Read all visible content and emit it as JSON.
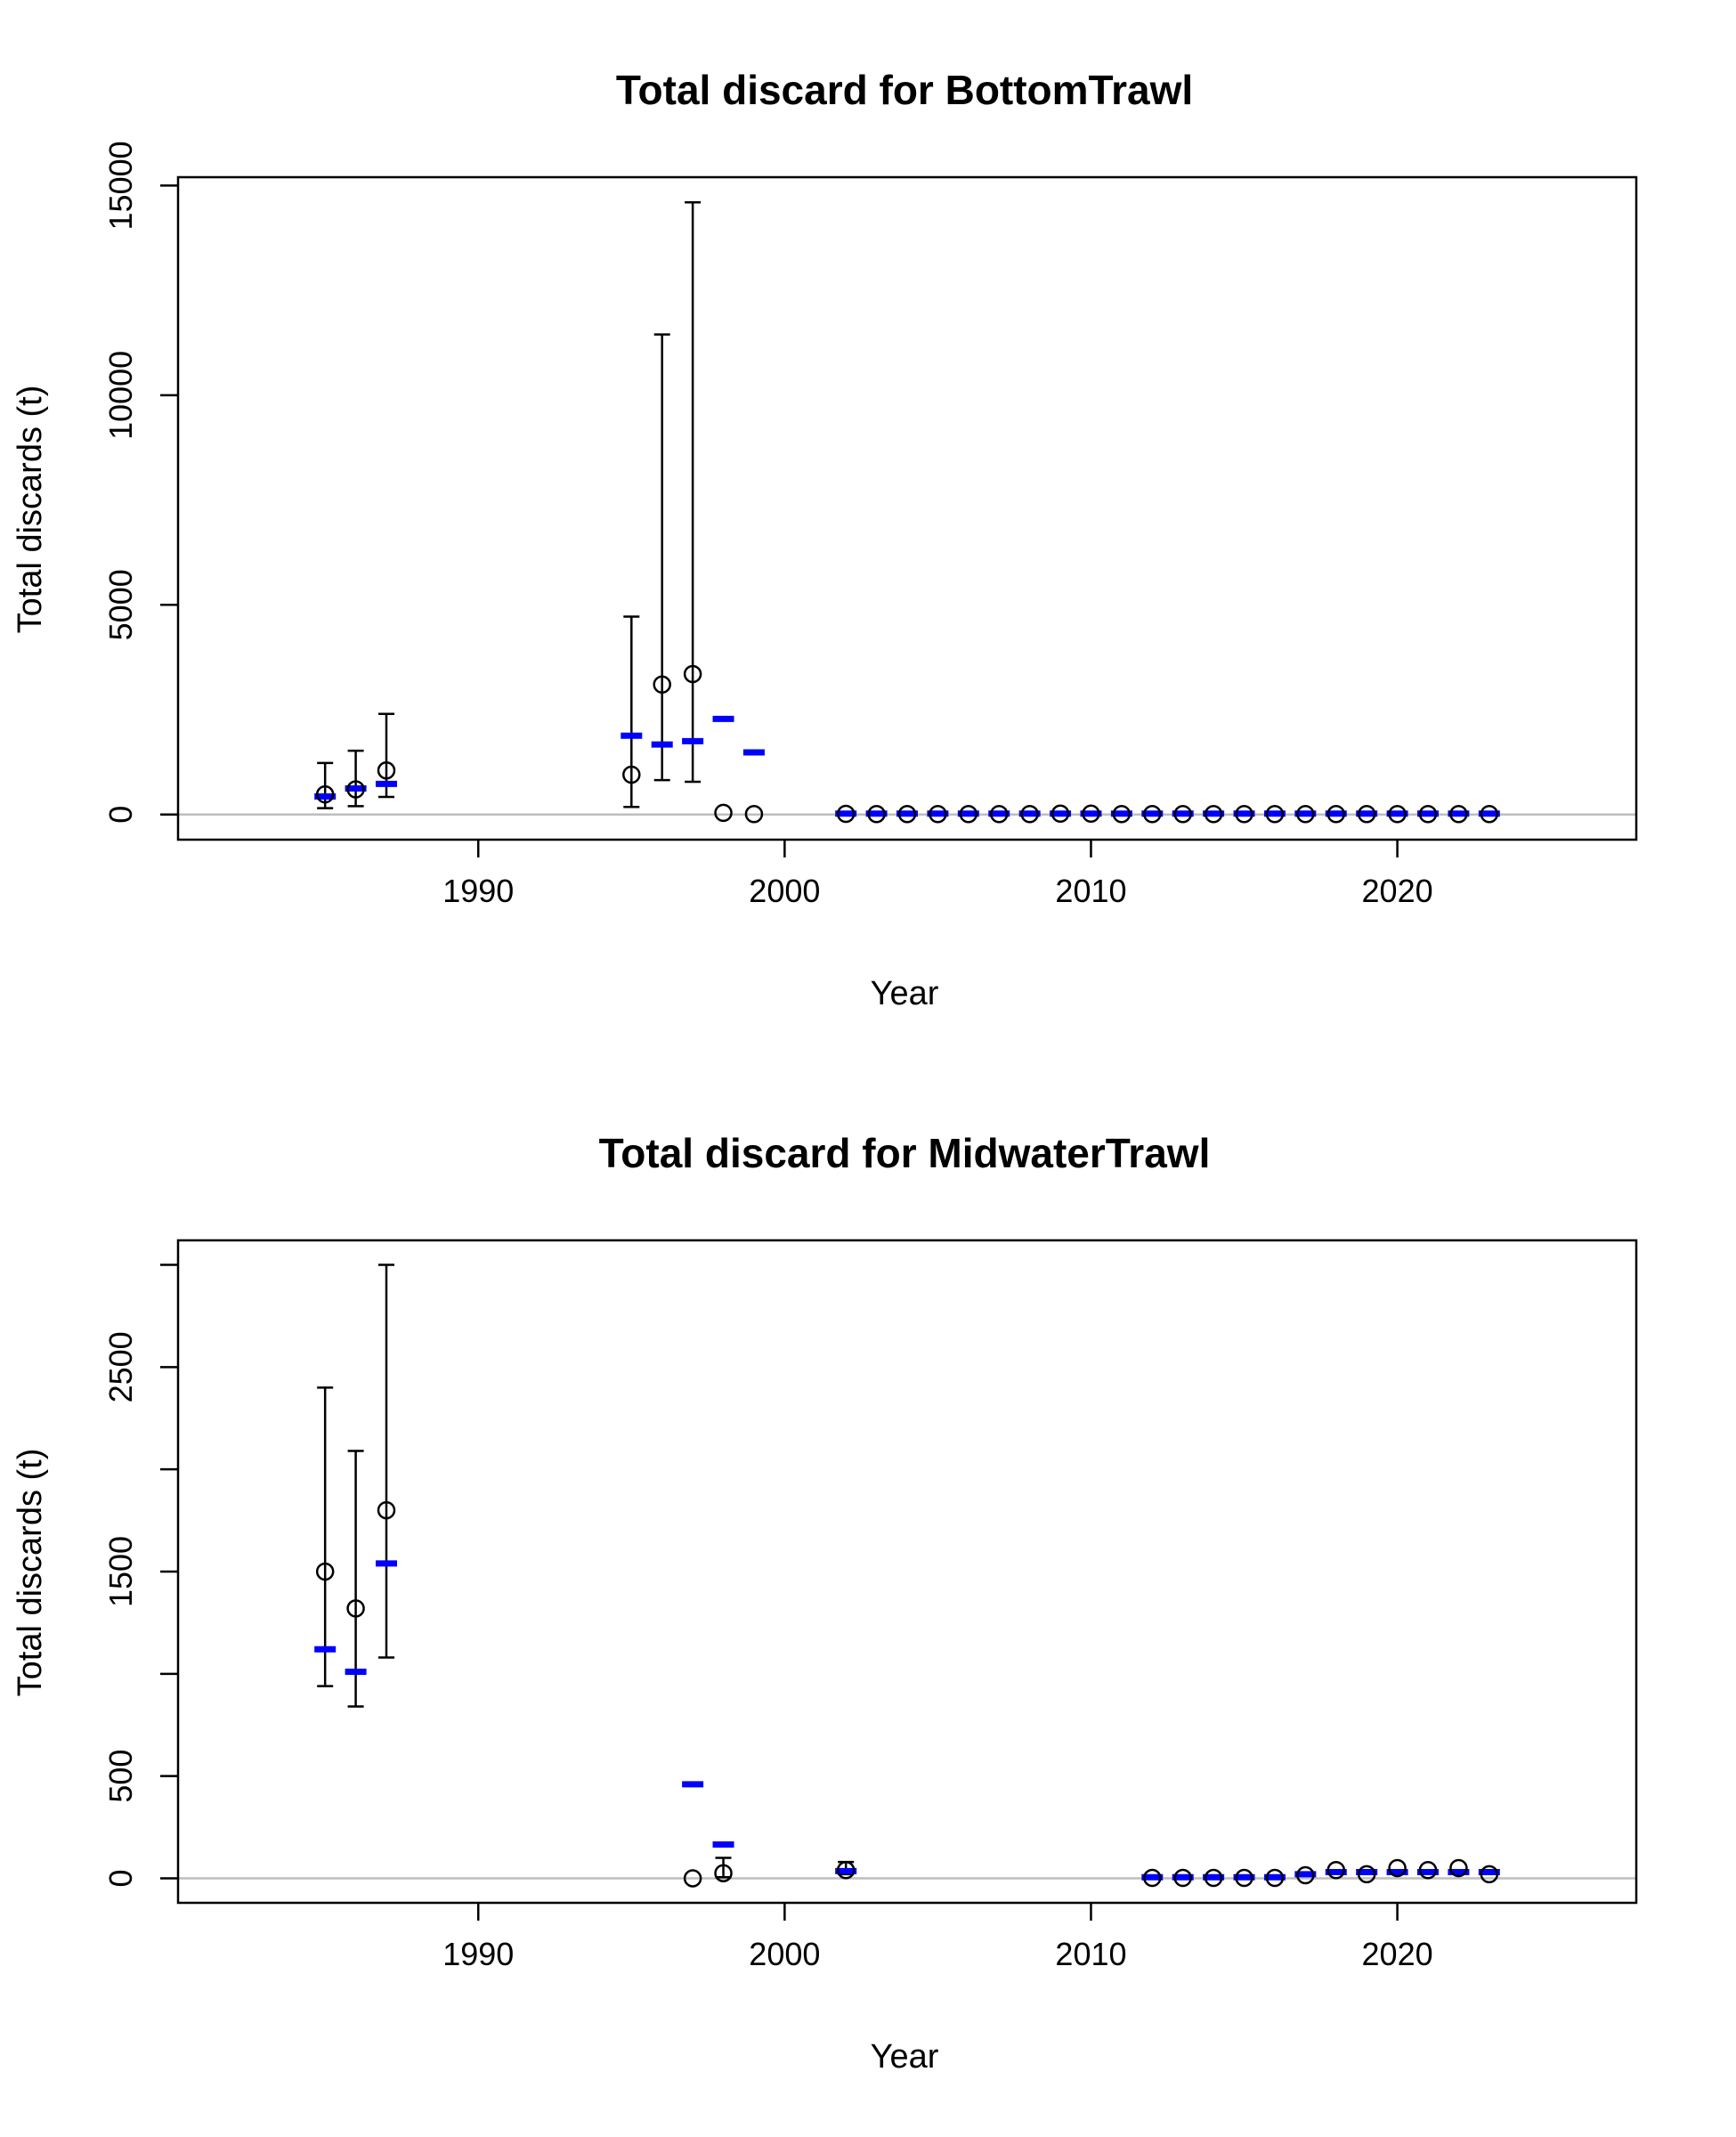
{
  "chart_data": [
    {
      "type": "scatter",
      "title": "Total discard for BottomTrawl",
      "xlabel": "Year",
      "ylabel": "Total discards (t)",
      "xlim": [
        1980.2,
        2027.8
      ],
      "ylim": [
        -600,
        15200
      ],
      "x_ticks": [
        1990,
        2000,
        2010,
        2020
      ],
      "y_ticks": [
        0,
        5000,
        10000,
        15000
      ],
      "grid": false,
      "reference_line": 0,
      "series": [
        {
          "marker": "open-circle",
          "color": "#000000",
          "points": [
            {
              "x": 1985,
              "y": 480,
              "lo": 150,
              "hi": 1230
            },
            {
              "x": 1986,
              "y": 600,
              "lo": 200,
              "hi": 1520
            },
            {
              "x": 1987,
              "y": 1050,
              "lo": 420,
              "hi": 2400
            },
            {
              "x": 1995,
              "y": 950,
              "lo": 180,
              "hi": 4720
            },
            {
              "x": 1996,
              "y": 3100,
              "lo": 820,
              "hi": 11450
            },
            {
              "x": 1997,
              "y": 3350,
              "lo": 780,
              "hi": 14600
            },
            {
              "x": 1998,
              "y": 40
            },
            {
              "x": 1999,
              "y": 10
            },
            {
              "x": 2002,
              "y": 15
            },
            {
              "x": 2003,
              "y": 10
            },
            {
              "x": 2004,
              "y": 10
            },
            {
              "x": 2005,
              "y": 10
            },
            {
              "x": 2006,
              "y": 10
            },
            {
              "x": 2007,
              "y": 10
            },
            {
              "x": 2008,
              "y": 10
            },
            {
              "x": 2009,
              "y": 20
            },
            {
              "x": 2010,
              "y": 20
            },
            {
              "x": 2011,
              "y": 10
            },
            {
              "x": 2012,
              "y": 10
            },
            {
              "x": 2013,
              "y": 10
            },
            {
              "x": 2014,
              "y": 10
            },
            {
              "x": 2015,
              "y": 10
            },
            {
              "x": 2016,
              "y": 10
            },
            {
              "x": 2017,
              "y": 10
            },
            {
              "x": 2018,
              "y": 10
            },
            {
              "x": 2019,
              "y": 10
            },
            {
              "x": 2020,
              "y": 10
            },
            {
              "x": 2021,
              "y": 10
            },
            {
              "x": 2022,
              "y": 10
            },
            {
              "x": 2023,
              "y": 10
            }
          ]
        },
        {
          "marker": "dash",
          "color": "#0000ff",
          "points": [
            {
              "x": 1985,
              "y": 430
            },
            {
              "x": 1986,
              "y": 620
            },
            {
              "x": 1987,
              "y": 730
            },
            {
              "x": 1995,
              "y": 1880
            },
            {
              "x": 1996,
              "y": 1670
            },
            {
              "x": 1997,
              "y": 1750
            },
            {
              "x": 1998,
              "y": 2280
            },
            {
              "x": 1999,
              "y": 1480
            },
            {
              "x": 2002,
              "y": 20
            },
            {
              "x": 2003,
              "y": 20
            },
            {
              "x": 2004,
              "y": 20
            },
            {
              "x": 2005,
              "y": 20
            },
            {
              "x": 2006,
              "y": 20
            },
            {
              "x": 2007,
              "y": 20
            },
            {
              "x": 2008,
              "y": 20
            },
            {
              "x": 2009,
              "y": 20
            },
            {
              "x": 2010,
              "y": 20
            },
            {
              "x": 2011,
              "y": 20
            },
            {
              "x": 2012,
              "y": 20
            },
            {
              "x": 2013,
              "y": 20
            },
            {
              "x": 2014,
              "y": 20
            },
            {
              "x": 2015,
              "y": 20
            },
            {
              "x": 2016,
              "y": 20
            },
            {
              "x": 2017,
              "y": 20
            },
            {
              "x": 2018,
              "y": 20
            },
            {
              "x": 2019,
              "y": 20
            },
            {
              "x": 2020,
              "y": 20
            },
            {
              "x": 2021,
              "y": 20
            },
            {
              "x": 2022,
              "y": 20
            },
            {
              "x": 2023,
              "y": 20
            }
          ]
        }
      ]
    },
    {
      "type": "scatter",
      "title": "Total discard for MidwaterTrawl",
      "xlabel": "Year",
      "ylabel": "Total discards (t)",
      "xlim": [
        1980.2,
        2027.8
      ],
      "ylim": [
        -120,
        3120
      ],
      "x_ticks": [
        1990,
        2000,
        2010,
        2020
      ],
      "y_ticks": [
        0,
        500,
        1500,
        2500
      ],
      "y_minor_ticks": [
        1000,
        2000,
        3000
      ],
      "grid": false,
      "reference_line": 0,
      "series": [
        {
          "marker": "open-circle",
          "color": "#000000",
          "points": [
            {
              "x": 1985,
              "y": 1500,
              "lo": 940,
              "hi": 2400
            },
            {
              "x": 1986,
              "y": 1320,
              "lo": 840,
              "hi": 2090
            },
            {
              "x": 1987,
              "y": 1800,
              "lo": 1080,
              "hi": 3000
            },
            {
              "x": 1997,
              "y": 0
            },
            {
              "x": 1998,
              "y": 25,
              "lo": 5,
              "hi": 100
            },
            {
              "x": 2002,
              "y": 40,
              "lo": 20,
              "hi": 80
            },
            {
              "x": 2012,
              "y": 2
            },
            {
              "x": 2013,
              "y": 2
            },
            {
              "x": 2014,
              "y": 2
            },
            {
              "x": 2015,
              "y": 2
            },
            {
              "x": 2016,
              "y": 2
            },
            {
              "x": 2017,
              "y": 15
            },
            {
              "x": 2018,
              "y": 40
            },
            {
              "x": 2019,
              "y": 20
            },
            {
              "x": 2020,
              "y": 50
            },
            {
              "x": 2021,
              "y": 40
            },
            {
              "x": 2022,
              "y": 50
            },
            {
              "x": 2023,
              "y": 20
            }
          ]
        },
        {
          "marker": "dash",
          "color": "#0000ff",
          "points": [
            {
              "x": 1985,
              "y": 1120
            },
            {
              "x": 1986,
              "y": 1010
            },
            {
              "x": 1987,
              "y": 1540
            },
            {
              "x": 1997,
              "y": 460
            },
            {
              "x": 1998,
              "y": 165
            },
            {
              "x": 2002,
              "y": 35
            },
            {
              "x": 2012,
              "y": 5
            },
            {
              "x": 2013,
              "y": 5
            },
            {
              "x": 2014,
              "y": 5
            },
            {
              "x": 2015,
              "y": 5
            },
            {
              "x": 2016,
              "y": 5
            },
            {
              "x": 2017,
              "y": 20
            },
            {
              "x": 2018,
              "y": 30
            },
            {
              "x": 2019,
              "y": 30
            },
            {
              "x": 2020,
              "y": 30
            },
            {
              "x": 2021,
              "y": 30
            },
            {
              "x": 2022,
              "y": 30
            },
            {
              "x": 2023,
              "y": 30
            }
          ]
        }
      ]
    }
  ]
}
